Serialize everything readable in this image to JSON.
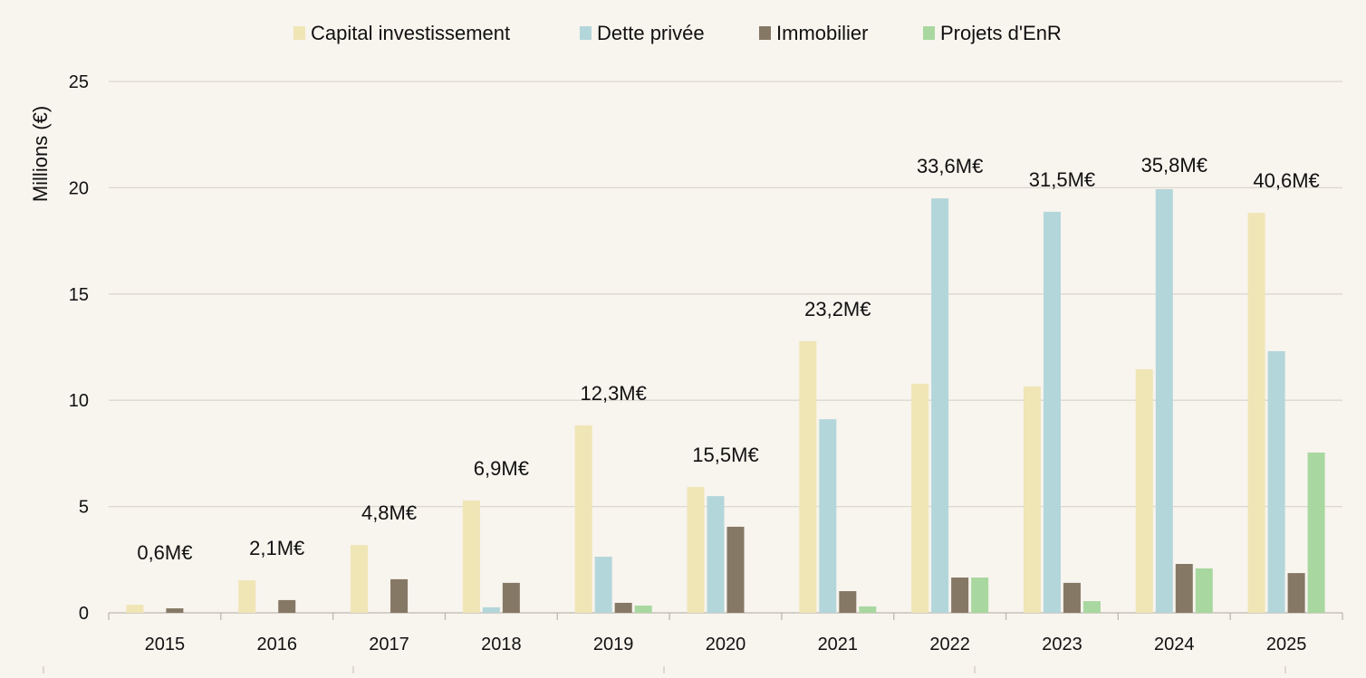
{
  "chart_data": {
    "type": "bar",
    "title": "",
    "xlabel": "",
    "ylabel": "Millions (€)",
    "ylim": [
      0,
      25
    ],
    "yticks": [
      0,
      5,
      10,
      15,
      20,
      25
    ],
    "grid": true,
    "legend_position": "top",
    "categories": [
      "2015",
      "2016",
      "2017",
      "2018",
      "2019",
      "2020",
      "2021",
      "2022",
      "2023",
      "2024",
      "2025"
    ],
    "series": [
      {
        "name": "Capital investissement",
        "color": "#f0e5b5",
        "values": [
          0.38,
          1.53,
          3.19,
          5.28,
          8.82,
          5.92,
          12.78,
          10.78,
          10.65,
          11.46,
          18.82
        ]
      },
      {
        "name": "Dette privée",
        "color": "#b3d6da",
        "values": [
          0,
          0,
          0,
          0.26,
          2.64,
          5.49,
          9.11,
          19.5,
          18.87,
          19.93,
          12.31
        ]
      },
      {
        "name": "Immobilier",
        "color": "#857865",
        "values": [
          0.21,
          0.6,
          1.58,
          1.41,
          0.47,
          4.05,
          1.02,
          1.66,
          1.41,
          2.3,
          1.87
        ]
      },
      {
        "name": "Projets d'EnR",
        "color": "#a8d8a0",
        "values": [
          0,
          0,
          0,
          0,
          0.34,
          0,
          0.3,
          1.66,
          0.55,
          2.09,
          7.54
        ]
      }
    ],
    "totals_labels": [
      "0,6M€",
      "2,1M€",
      "4,8M€",
      "6,9M€",
      "12,3M€",
      "15,5M€",
      "23,2M€",
      "33,6M€",
      "31,5M€",
      "35,8M€",
      "40,6M€"
    ]
  }
}
